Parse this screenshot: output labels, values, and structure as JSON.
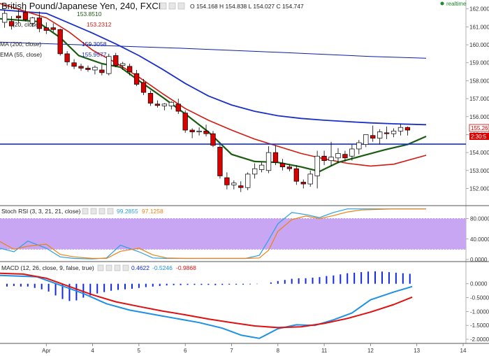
{
  "header": {
    "symbol": "British Pound/Japanese Yen, 240, FXCM",
    "ohlc": "O 154.168  H 154.838  L 154.027  C 154.747",
    "realtime": "realtime"
  },
  "indicators_main": [
    {
      "label": "",
      "value": "153.8510",
      "color": "#1a5c10"
    },
    {
      "label": "(20, close)",
      "value": "153.2312",
      "color": "#d21b10"
    },
    {
      "label": "MA (200, close)",
      "value": "159.3058",
      "color": "#0a1fa3"
    },
    {
      "label": "EMA (55, close)",
      "value": "155.9577",
      "color": "#1a2fc8"
    }
  ],
  "stoch_legend": {
    "label": "Stoch RSI (3, 3, 21, 21, close)",
    "k": "99.2855",
    "d": "97.1258"
  },
  "macd_legend": {
    "label": "MACD (12, 26, close, 9, false, true)",
    "hist": "0.4622",
    "macd": "-0.5246",
    "signal": "-0.9868"
  },
  "price_tags": {
    "last": "155.26",
    "countdown": "2:30:5"
  },
  "colors": {
    "up": "#ffffff",
    "down": "#d90000",
    "ema_short": "#1a5c10",
    "ema20": "#d21b10",
    "ma200": "#0a1fa3",
    "ema55": "#1a2fc8",
    "hline": "#1030d8",
    "stoch_k": "#2aa0e0",
    "stoch_d": "#f08010",
    "stoch_band": "#c8a6f4",
    "macd_line": "#1e90e6",
    "signal_line": "#e01010",
    "hist": "#1028e0"
  },
  "chart_data": [
    {
      "type": "candlestick",
      "panel": "price",
      "ylim": [
        151.2,
        162.3
      ],
      "xlim": [
        0,
        14
      ],
      "x_ticks": [
        {
          "x": 1,
          "label": "Apr"
        },
        {
          "x": 2,
          "label": "4"
        },
        {
          "x": 3,
          "label": "5"
        },
        {
          "x": 4,
          "label": "6"
        },
        {
          "x": 5,
          "label": "7"
        },
        {
          "x": 6,
          "label": "8"
        },
        {
          "x": 7,
          "label": "11"
        },
        {
          "x": 8,
          "label": "12"
        },
        {
          "x": 9,
          "label": "13"
        },
        {
          "x": 10,
          "label": "14"
        }
      ],
      "y_ticks": [
        "162.000",
        "161.000",
        "160.000",
        "159.000",
        "158.000",
        "157.000",
        "156.000",
        "155.000",
        "154.000",
        "153.000",
        "152.000"
      ],
      "horizontal_line": 154.47,
      "candles": [
        {
          "x": 0.1,
          "o": 161.25,
          "h": 161.95,
          "l": 160.95,
          "c": 161.75
        },
        {
          "x": 0.25,
          "o": 161.3,
          "h": 161.6,
          "l": 160.85,
          "c": 161.05
        },
        {
          "x": 0.4,
          "o": 161.6,
          "h": 161.95,
          "l": 161.2,
          "c": 161.5
        },
        {
          "x": 0.55,
          "o": 161.8,
          "h": 162.05,
          "l": 161.3,
          "c": 161.4
        },
        {
          "x": 0.7,
          "o": 161.2,
          "h": 161.55,
          "l": 161.0,
          "c": 161.5
        },
        {
          "x": 0.85,
          "o": 161.5,
          "h": 161.85,
          "l": 160.7,
          "c": 160.9
        },
        {
          "x": 1.0,
          "o": 160.95,
          "h": 161.25,
          "l": 160.6,
          "c": 160.8
        },
        {
          "x": 1.15,
          "o": 160.95,
          "h": 161.2,
          "l": 160.7,
          "c": 160.85
        },
        {
          "x": 1.3,
          "o": 160.85,
          "h": 160.9,
          "l": 159.4,
          "c": 159.5
        },
        {
          "x": 1.45,
          "o": 159.5,
          "h": 159.65,
          "l": 158.85,
          "c": 159.05
        },
        {
          "x": 1.6,
          "o": 159.0,
          "h": 159.2,
          "l": 158.65,
          "c": 158.8
        },
        {
          "x": 1.75,
          "o": 158.8,
          "h": 158.95,
          "l": 158.55,
          "c": 158.7
        },
        {
          "x": 1.9,
          "o": 158.7,
          "h": 158.85,
          "l": 158.5,
          "c": 158.62
        },
        {
          "x": 2.05,
          "o": 158.6,
          "h": 158.85,
          "l": 158.35,
          "c": 158.75
        },
        {
          "x": 2.2,
          "o": 158.6,
          "h": 158.9,
          "l": 158.3,
          "c": 158.45
        },
        {
          "x": 2.35,
          "o": 158.4,
          "h": 159.5,
          "l": 158.3,
          "c": 159.35
        },
        {
          "x": 2.5,
          "o": 159.4,
          "h": 159.55,
          "l": 158.75,
          "c": 158.85
        },
        {
          "x": 2.65,
          "o": 158.85,
          "h": 159.05,
          "l": 158.6,
          "c": 158.95
        },
        {
          "x": 2.8,
          "o": 158.8,
          "h": 158.95,
          "l": 158.3,
          "c": 158.5
        },
        {
          "x": 2.95,
          "o": 158.4,
          "h": 158.6,
          "l": 157.7,
          "c": 157.8
        },
        {
          "x": 3.1,
          "o": 157.9,
          "h": 158.1,
          "l": 157.2,
          "c": 157.35
        },
        {
          "x": 3.25,
          "o": 157.3,
          "h": 157.45,
          "l": 156.6,
          "c": 156.75
        },
        {
          "x": 3.4,
          "o": 156.7,
          "h": 156.9,
          "l": 156.5,
          "c": 156.62
        },
        {
          "x": 3.55,
          "o": 156.6,
          "h": 156.75,
          "l": 156.35,
          "c": 156.7
        },
        {
          "x": 3.7,
          "o": 156.6,
          "h": 156.85,
          "l": 156.4,
          "c": 156.8
        },
        {
          "x": 3.85,
          "o": 156.7,
          "h": 157.0,
          "l": 156.15,
          "c": 156.3
        },
        {
          "x": 4.0,
          "o": 156.2,
          "h": 156.35,
          "l": 155.1,
          "c": 155.25
        },
        {
          "x": 4.15,
          "o": 155.25,
          "h": 155.35,
          "l": 154.8,
          "c": 155.15
        },
        {
          "x": 4.3,
          "o": 155.15,
          "h": 155.4,
          "l": 154.95,
          "c": 155.2
        },
        {
          "x": 4.45,
          "o": 155.2,
          "h": 155.55,
          "l": 154.9,
          "c": 155.05
        },
        {
          "x": 4.6,
          "o": 155.05,
          "h": 155.2,
          "l": 154.3,
          "c": 154.4
        },
        {
          "x": 4.75,
          "o": 154.3,
          "h": 154.45,
          "l": 152.55,
          "c": 152.7
        },
        {
          "x": 4.9,
          "o": 152.6,
          "h": 152.9,
          "l": 151.95,
          "c": 152.2
        },
        {
          "x": 5.05,
          "o": 152.2,
          "h": 152.45,
          "l": 151.95,
          "c": 152.3
        },
        {
          "x": 5.2,
          "o": 152.15,
          "h": 152.4,
          "l": 151.8,
          "c": 152.05
        },
        {
          "x": 5.35,
          "o": 152.05,
          "h": 152.9,
          "l": 151.9,
          "c": 152.8
        },
        {
          "x": 5.5,
          "o": 152.8,
          "h": 153.4,
          "l": 152.55,
          "c": 153.1
        },
        {
          "x": 5.65,
          "o": 153.05,
          "h": 153.45,
          "l": 152.9,
          "c": 153.3
        },
        {
          "x": 5.8,
          "o": 153.0,
          "h": 154.35,
          "l": 152.85,
          "c": 154.0
        },
        {
          "x": 5.95,
          "o": 154.0,
          "h": 154.4,
          "l": 153.3,
          "c": 153.45
        },
        {
          "x": 6.1,
          "o": 153.4,
          "h": 153.65,
          "l": 153.0,
          "c": 153.2
        },
        {
          "x": 6.25,
          "o": 153.2,
          "h": 153.35,
          "l": 152.95,
          "c": 153.1
        },
        {
          "x": 6.4,
          "o": 153.1,
          "h": 153.3,
          "l": 152.2,
          "c": 152.4
        },
        {
          "x": 6.55,
          "o": 152.35,
          "h": 152.5,
          "l": 152.0,
          "c": 152.25
        },
        {
          "x": 6.7,
          "o": 152.25,
          "h": 153.0,
          "l": 152.1,
          "c": 152.8
        },
        {
          "x": 6.85,
          "o": 152.7,
          "h": 154.1,
          "l": 152.0,
          "c": 153.8
        },
        {
          "x": 7.0,
          "o": 153.8,
          "h": 154.1,
          "l": 153.3,
          "c": 153.55
        },
        {
          "x": 7.15,
          "o": 153.55,
          "h": 154.6,
          "l": 153.25,
          "c": 153.75
        },
        {
          "x": 7.3,
          "o": 153.7,
          "h": 154.25,
          "l": 153.4,
          "c": 153.95
        },
        {
          "x": 7.45,
          "o": 153.9,
          "h": 154.1,
          "l": 153.5,
          "c": 153.7
        },
        {
          "x": 7.6,
          "o": 153.8,
          "h": 154.45,
          "l": 153.55,
          "c": 154.2
        },
        {
          "x": 7.75,
          "o": 154.2,
          "h": 154.7,
          "l": 153.9,
          "c": 154.55
        },
        {
          "x": 7.9,
          "o": 154.45,
          "h": 154.95,
          "l": 154.3,
          "c": 155.0
        },
        {
          "x": 8.05,
          "o": 154.95,
          "h": 155.5,
          "l": 154.6,
          "c": 154.8
        },
        {
          "x": 8.2,
          "o": 154.8,
          "h": 155.3,
          "l": 154.45,
          "c": 155.15
        },
        {
          "x": 8.35,
          "o": 155.1,
          "h": 155.45,
          "l": 154.75,
          "c": 155.05
        },
        {
          "x": 8.5,
          "o": 155.05,
          "h": 155.35,
          "l": 154.85,
          "c": 155.2
        },
        {
          "x": 8.65,
          "o": 155.2,
          "h": 155.6,
          "l": 154.95,
          "c": 155.4
        },
        {
          "x": 8.8,
          "o": 155.4,
          "h": 155.45,
          "l": 154.95,
          "c": 155.25
        }
      ],
      "lines": [
        {
          "name": "ma200",
          "x": [
            0,
            2,
            4,
            6,
            8,
            9.2
          ],
          "y": [
            160.15,
            159.98,
            159.8,
            159.58,
            159.35,
            159.25
          ]
        },
        {
          "name": "ema55",
          "x": [
            0,
            1,
            1.5,
            2,
            2.5,
            3,
            3.5,
            4,
            4.5,
            5,
            5.5,
            6,
            6.5,
            7,
            7.5,
            8,
            8.5,
            9.2
          ],
          "y": [
            161.95,
            161.75,
            161.2,
            160.65,
            160.05,
            159.4,
            158.65,
            157.85,
            157.15,
            156.65,
            156.3,
            156.05,
            155.9,
            155.8,
            155.72,
            155.65,
            155.6,
            155.55
          ]
        },
        {
          "name": "ema20",
          "x": [
            0,
            1,
            1.5,
            2,
            2.5,
            3,
            3.5,
            4,
            4.5,
            5,
            5.5,
            6,
            6.5,
            7,
            7.5,
            8,
            8.5,
            9.2
          ],
          "y": [
            162.3,
            161.5,
            160.7,
            159.7,
            159.0,
            158.2,
            157.3,
            156.45,
            155.8,
            155.25,
            154.75,
            154.35,
            153.95,
            153.65,
            153.4,
            153.25,
            153.35,
            153.85
          ]
        },
        {
          "name": "ema_short",
          "x": [
            0,
            0.8,
            1.3,
            1.7,
            2.2,
            2.6,
            3,
            3.5,
            4,
            4.5,
            5,
            5.5,
            6,
            6.5,
            6.9,
            7.3,
            7.8,
            8.3,
            8.8,
            9.2
          ],
          "y": [
            161.45,
            161.3,
            160.4,
            159.4,
            158.95,
            158.75,
            158.0,
            157.1,
            156.15,
            155.15,
            153.9,
            153.5,
            153.45,
            153.2,
            152.95,
            153.45,
            153.8,
            154.15,
            154.45,
            154.9
          ]
        }
      ]
    },
    {
      "type": "line",
      "panel": "stoch_rsi",
      "ylim": [
        0,
        100
      ],
      "y_ticks": [
        "80.0000",
        "40.0000",
        "0.0000"
      ],
      "band": [
        20,
        80
      ],
      "x": [
        0,
        0.3,
        0.6,
        1.0,
        1.3,
        1.6,
        2.0,
        2.3,
        2.6,
        3.0,
        3.3,
        3.6,
        4.0,
        4.3,
        4.6,
        5.0,
        5.3,
        5.6,
        5.8,
        6.0,
        6.3,
        6.6,
        6.9,
        7.2,
        7.5,
        7.8,
        8.1,
        8.5,
        9.2
      ],
      "series": [
        {
          "name": "k",
          "values": [
            22,
            15,
            36,
            22,
            5,
            2,
            1,
            3,
            28,
            15,
            3,
            2,
            2,
            2,
            2,
            2,
            2,
            8,
            38,
            70,
            92,
            88,
            82,
            92,
            99,
            99,
            99,
            99,
            99
          ]
        },
        {
          "name": "d",
          "values": [
            35,
            20,
            26,
            30,
            10,
            5,
            2,
            2,
            16,
            22,
            9,
            3,
            2,
            2,
            2,
            2,
            2,
            3,
            18,
            55,
            78,
            85,
            80,
            86,
            93,
            97,
            98,
            99,
            99
          ]
        }
      ]
    },
    {
      "type": "line",
      "panel": "macd",
      "ylim": [
        -2.1,
        0.75
      ],
      "y_ticks": [
        "0.0000",
        "-0.5000",
        "-1.0000",
        "-1.5000",
        "-2.0000"
      ],
      "hist_x": [
        0.15,
        0.3,
        0.45,
        0.6,
        0.75,
        0.9,
        1.05,
        1.2,
        1.35,
        1.5,
        1.65,
        1.8,
        1.95,
        2.1,
        2.25,
        2.4,
        2.55,
        2.7,
        2.85,
        3.0,
        3.15,
        3.3,
        3.45,
        3.6,
        3.75,
        3.9,
        4.05,
        4.2,
        4.35,
        4.5,
        4.65,
        4.8,
        4.95,
        5.1,
        5.25,
        5.4,
        5.55,
        5.7,
        5.85,
        6.0,
        6.15,
        6.3,
        6.45,
        6.6,
        6.75,
        6.9,
        7.05,
        7.2,
        7.35,
        7.5,
        7.65,
        7.8,
        7.95,
        8.1,
        8.25,
        8.4,
        8.55,
        8.7,
        8.85
      ],
      "hist": [
        -0.1,
        -0.08,
        -0.1,
        -0.1,
        -0.15,
        -0.2,
        -0.28,
        -0.42,
        -0.55,
        -0.62,
        -0.6,
        -0.5,
        -0.42,
        -0.35,
        -0.3,
        -0.25,
        -0.22,
        -0.2,
        -0.18,
        -0.15,
        -0.12,
        -0.1,
        -0.08,
        -0.06,
        -0.05,
        -0.05,
        -0.04,
        -0.04,
        -0.04,
        -0.04,
        -0.05,
        -0.04,
        -0.03,
        -0.03,
        -0.03,
        -0.02,
        -0.01,
        0.0,
        0.05,
        0.1,
        0.14,
        0.18,
        0.2,
        0.2,
        0.22,
        0.24,
        0.28,
        0.3,
        0.34,
        0.38,
        0.4,
        0.42,
        0.44,
        0.45,
        0.44,
        0.42,
        0.4,
        0.38,
        0.36
      ],
      "lines": [
        {
          "name": "macd",
          "x": [
            0,
            0.8,
            1.3,
            1.8,
            2.3,
            2.8,
            3.3,
            3.8,
            4.3,
            4.8,
            5.2,
            5.6,
            6.0,
            6.4,
            6.8,
            7.2,
            7.6,
            8.0,
            8.5,
            8.9
          ],
          "y": [
            0.3,
            0.25,
            -0.05,
            -0.35,
            -0.72,
            -0.95,
            -1.1,
            -1.25,
            -1.4,
            -1.6,
            -1.85,
            -1.97,
            -1.62,
            -1.48,
            -1.5,
            -1.3,
            -1.05,
            -0.58,
            -0.3,
            -0.1
          ]
        },
        {
          "name": "signal",
          "x": [
            0,
            0.5,
            1.0,
            1.5,
            2.0,
            2.5,
            3.0,
            3.5,
            4.0,
            4.5,
            5.0,
            5.5,
            6.0,
            6.5,
            7.0,
            7.5,
            8.0,
            8.5,
            8.9
          ],
          "y": [
            0.38,
            0.35,
            0.2,
            -0.1,
            -0.4,
            -0.65,
            -0.82,
            -0.98,
            -1.12,
            -1.27,
            -1.4,
            -1.52,
            -1.58,
            -1.55,
            -1.43,
            -1.25,
            -1.02,
            -0.75,
            -0.48
          ]
        }
      ]
    }
  ]
}
